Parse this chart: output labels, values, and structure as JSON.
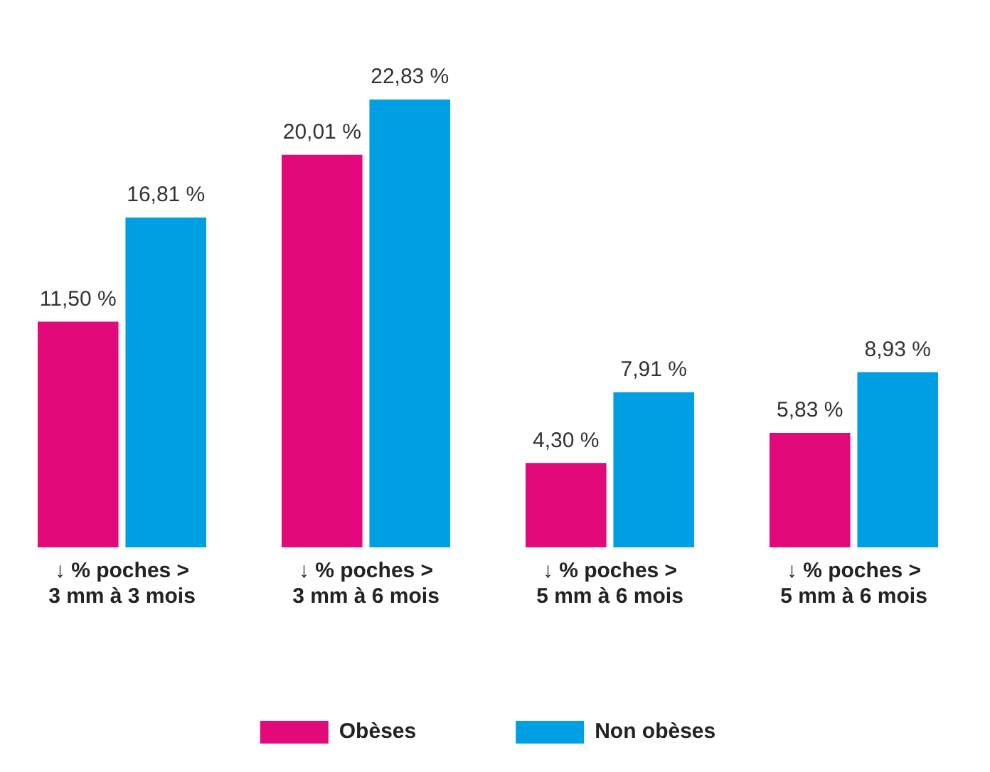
{
  "chart_data": {
    "type": "bar",
    "categories": [
      "↓ % poches >\n3 mm à 3 mois",
      "↓ % poches >\n3 mm à 6 mois",
      "↓ % poches >\n5 mm à 6 mois",
      "↓ % poches >\n5 mm à 6 mois"
    ],
    "series": [
      {
        "name": "Obèses",
        "color": "#e2097a",
        "values": [
          11.5,
          20.01,
          4.3,
          5.83
        ],
        "value_labels": [
          "11,50 %",
          "20,01 %",
          "4,30 %",
          "5,83 %"
        ]
      },
      {
        "name": "Non obèses",
        "color": "#009fe3",
        "values": [
          16.81,
          22.83,
          7.91,
          8.93
        ],
        "value_labels": [
          "16,81 %",
          "22,83 %",
          "7,91 %",
          "8,93 %"
        ]
      }
    ],
    "grid": false,
    "legend": "bottom"
  }
}
